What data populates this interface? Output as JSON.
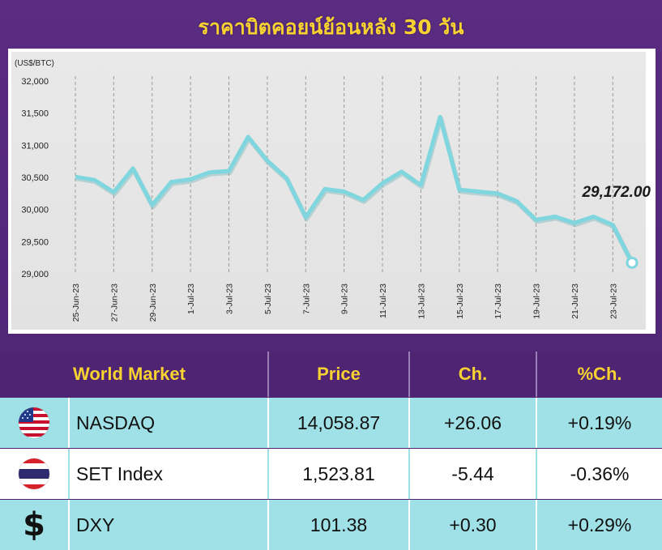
{
  "title": "ราคาบิตคอยน์ย้อนหลัง 30 วัน",
  "chart_data": {
    "type": "line",
    "title": "ราคาบิตคอยน์ย้อนหลัง 30 วัน",
    "ylabel": "(US$/BTC)",
    "ylim": [
      29000,
      32000
    ],
    "yticks": [
      29000,
      29500,
      30000,
      30500,
      31000,
      31500,
      32000
    ],
    "ytick_labels": [
      "29,000",
      "29,500",
      "30,000",
      "30,500",
      "31,000",
      "31,500",
      "32,000"
    ],
    "x": [
      "25-Jun-23",
      "26-Jun-23",
      "27-Jun-23",
      "28-Jun-23",
      "29-Jun-23",
      "30-Jun-23",
      "1-Jul-23",
      "2-Jul-23",
      "3-Jul-23",
      "4-Jul-23",
      "5-Jul-23",
      "6-Jul-23",
      "7-Jul-23",
      "8-Jul-23",
      "9-Jul-23",
      "10-Jul-23",
      "11-Jul-23",
      "12-Jul-23",
      "13-Jul-23",
      "14-Jul-23",
      "15-Jul-23",
      "16-Jul-23",
      "17-Jul-23",
      "18-Jul-23",
      "19-Jul-23",
      "20-Jul-23",
      "21-Jul-23",
      "22-Jul-23",
      "23-Jul-23",
      "24-Jul-23"
    ],
    "xtick_labels": [
      "25-Jun-23",
      "27-Jun-23",
      "29-Jun-23",
      "1-Jul-23",
      "3-Jul-23",
      "5-Jul-23",
      "7-Jul-23",
      "9-Jul-23",
      "11-Jul-23",
      "13-Jul-23",
      "15-Jul-23",
      "17-Jul-23",
      "19-Jul-23",
      "21-Jul-23",
      "23-Jul-23"
    ],
    "series": [
      {
        "values": [
          30510,
          30460,
          30270,
          30640,
          30070,
          30430,
          30470,
          30580,
          30600,
          31130,
          30760,
          30490,
          29880,
          30320,
          30280,
          30150,
          30410,
          30590,
          30380,
          31440,
          30310,
          30280,
          30250,
          30130,
          29840,
          29890,
          29790,
          29890,
          29760,
          29172
        ],
        "color": "#7fd6de"
      }
    ],
    "last_value_label": "29,172.00",
    "grid": "vertical"
  },
  "table": {
    "headers": {
      "market": "World Market",
      "price": "Price",
      "change": "Ch.",
      "pct_change": "%Ch."
    },
    "rows": [
      {
        "icon": "us-flag-icon",
        "name": "NASDAQ",
        "price": "14,058.87",
        "change": "+26.06",
        "pct_change": "+0.19%"
      },
      {
        "icon": "thai-flag-icon",
        "name": "SET Index",
        "price": "1,523.81",
        "change": "-5.44",
        "pct_change": "-0.36%"
      },
      {
        "icon": "dollar-icon",
        "name": "DXY",
        "price": "101.38",
        "change": "+0.30",
        "pct_change": "+0.29%"
      }
    ]
  },
  "colors": {
    "background": "#5a2c82",
    "title": "#f7d230",
    "line": "#7fd6de",
    "row_cyan": "#9fe1e6"
  }
}
